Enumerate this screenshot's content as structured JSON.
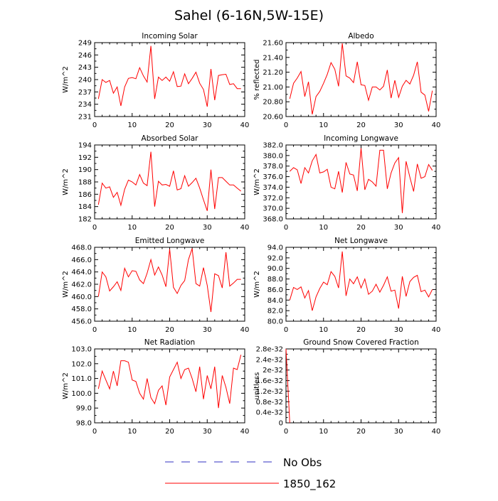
{
  "figure_title": "Sahel (6-16N,5W-15E)",
  "legend": [
    {
      "label": "No Obs",
      "color": "#3030c0",
      "style": "dashed"
    },
    {
      "label": "1850_162",
      "color": "#ff0000",
      "style": "solid"
    }
  ],
  "chart_data": [
    {
      "type": "line",
      "title": "Incoming Solar",
      "ylabel": "W/m^2",
      "xlim": [
        0,
        40
      ],
      "ylim": [
        231,
        249
      ],
      "xticks": [
        "0",
        "10",
        "20",
        "30",
        "40"
      ],
      "yticks": [
        "231",
        "234",
        "237",
        "240",
        "243",
        "246",
        "249"
      ],
      "series": [
        {
          "name": "1850_162",
          "color": "#ff0000",
          "x": [
            1,
            2,
            3,
            4,
            5,
            6,
            7,
            8,
            9,
            10,
            11,
            12,
            13,
            14,
            15,
            16,
            17,
            18,
            19,
            20,
            21,
            22,
            23,
            24,
            25,
            26,
            27,
            28,
            29,
            30,
            31,
            32,
            33,
            34,
            35,
            36,
            37,
            38,
            39
          ],
          "values": [
            235.3,
            240.0,
            239.3,
            239.8,
            236.7,
            238.2,
            233.6,
            238.2,
            240.3,
            240.5,
            240.2,
            242.9,
            240.9,
            239.4,
            248.2,
            235.3,
            240.6,
            239.8,
            240.6,
            239.6,
            241.9,
            238.3,
            238.4,
            241.4,
            239.0,
            240.3,
            241.8,
            239.1,
            237.6,
            233.4,
            242.6,
            235.0,
            241.0,
            241.2,
            241.3,
            238.8,
            239.0,
            237.8,
            237.8
          ]
        }
      ]
    },
    {
      "type": "line",
      "title": "Albedo",
      "ylabel": "% reflected",
      "xlim": [
        0,
        40
      ],
      "ylim": [
        20.6,
        21.6
      ],
      "xticks": [
        "0",
        "10",
        "20",
        "30",
        "40"
      ],
      "yticks": [
        "20.60",
        "20.80",
        "21.00",
        "21.20",
        "21.40",
        "21.60"
      ],
      "series": [
        {
          "name": "1850_162",
          "color": "#ff0000",
          "x": [
            1,
            2,
            3,
            4,
            5,
            6,
            7,
            8,
            9,
            10,
            11,
            12,
            13,
            14,
            15,
            16,
            17,
            18,
            19,
            20,
            21,
            22,
            23,
            24,
            25,
            26,
            27,
            28,
            29,
            30,
            31,
            32,
            33,
            34,
            35,
            36,
            37,
            38,
            39
          ],
          "values": [
            20.84,
            21.05,
            21.12,
            21.21,
            20.87,
            21.07,
            20.63,
            20.87,
            20.94,
            21.05,
            21.17,
            21.33,
            21.24,
            21.01,
            21.59,
            21.15,
            21.12,
            21.06,
            21.34,
            21.03,
            21.02,
            20.82,
            21.0,
            21.0,
            20.96,
            21.01,
            21.23,
            20.85,
            21.09,
            20.86,
            21.01,
            21.09,
            21.04,
            21.16,
            21.34,
            20.93,
            20.89,
            20.67,
            20.95
          ]
        }
      ]
    },
    {
      "type": "line",
      "title": "Absorbed Solar",
      "ylabel": "W/m^2",
      "xlim": [
        0,
        40
      ],
      "ylim": [
        182,
        194
      ],
      "xticks": [
        "0",
        "10",
        "20",
        "30",
        "40"
      ],
      "yticks": [
        "182",
        "184",
        "186",
        "188",
        "190",
        "192",
        "194"
      ],
      "series": [
        {
          "name": "1850_162",
          "color": "#ff0000",
          "x": [
            1,
            2,
            3,
            4,
            5,
            6,
            7,
            8,
            9,
            10,
            11,
            12,
            13,
            14,
            15,
            16,
            17,
            18,
            19,
            20,
            21,
            22,
            23,
            24,
            25,
            26,
            27,
            28,
            29,
            30,
            31,
            32,
            33,
            34,
            35,
            36,
            37,
            38,
            39
          ],
          "values": [
            184.3,
            187.8,
            187.0,
            187.2,
            185.5,
            186.3,
            184.2,
            186.8,
            188.3,
            188.0,
            187.5,
            189.2,
            187.8,
            187.4,
            192.9,
            184.0,
            188.1,
            187.5,
            187.6,
            187.3,
            189.8,
            186.7,
            186.9,
            189.0,
            187.3,
            187.9,
            188.6,
            187.0,
            185.1,
            183.3,
            190.0,
            183.6,
            188.7,
            188.7,
            188.1,
            187.5,
            187.5,
            187.0,
            186.5
          ]
        }
      ]
    },
    {
      "type": "line",
      "title": "Incoming Longwave",
      "ylabel": "W/m^2",
      "xlim": [
        0,
        40
      ],
      "ylim": [
        368.0,
        382.0
      ],
      "xticks": [
        "0",
        "10",
        "20",
        "30",
        "40"
      ],
      "yticks": [
        "368.0",
        "370.0",
        "372.0",
        "374.0",
        "376.0",
        "378.0",
        "380.0",
        "382.0"
      ],
      "series": [
        {
          "name": "1850_162",
          "color": "#ff0000",
          "x": [
            1,
            2,
            3,
            4,
            5,
            6,
            7,
            8,
            9,
            10,
            11,
            12,
            13,
            14,
            15,
            16,
            17,
            18,
            19,
            20,
            21,
            22,
            23,
            24,
            25,
            26,
            27,
            28,
            29,
            30,
            31,
            32,
            33,
            34,
            35,
            36,
            37,
            38,
            39
          ],
          "values": [
            377.0,
            377.7,
            377.3,
            374.7,
            377.7,
            376.7,
            379.0,
            380.2,
            376.7,
            376.9,
            377.4,
            374.0,
            373.7,
            377.0,
            373.0,
            378.7,
            376.5,
            376.3,
            373.3,
            381.4,
            373.5,
            375.5,
            375.0,
            374.2,
            381.0,
            381.0,
            373.7,
            376.7,
            378.6,
            379.6,
            369.1,
            378.9,
            375.9,
            373.2,
            378.4,
            375.7,
            376.0,
            378.3,
            377.2
          ]
        }
      ]
    },
    {
      "type": "line",
      "title": "Emitted Longwave",
      "ylabel": "W/m^2",
      "xlim": [
        0,
        40
      ],
      "ylim": [
        456.0,
        468.0
      ],
      "xticks": [
        "0",
        "10",
        "20",
        "30",
        "40"
      ],
      "yticks": [
        "456.0",
        "458.0",
        "460.0",
        "462.0",
        "464.0",
        "466.0",
        "468.0"
      ],
      "series": [
        {
          "name": "1850_162",
          "color": "#ff0000",
          "x": [
            1,
            2,
            3,
            4,
            5,
            6,
            7,
            8,
            9,
            10,
            11,
            12,
            13,
            14,
            15,
            16,
            17,
            18,
            19,
            20,
            21,
            22,
            23,
            24,
            25,
            26,
            27,
            28,
            29,
            30,
            31,
            32,
            33,
            34,
            35,
            36,
            37,
            38,
            39
          ],
          "values": [
            460.0,
            464.0,
            463.2,
            460.9,
            461.6,
            462.4,
            461.0,
            464.6,
            463.2,
            464.2,
            464.1,
            462.7,
            462.1,
            463.8,
            466.0,
            463.5,
            464.8,
            463.5,
            461.6,
            467.7,
            461.5,
            460.5,
            461.8,
            462.6,
            466.0,
            467.8,
            462.1,
            461.7,
            464.7,
            461.8,
            457.5,
            463.7,
            463.4,
            461.4,
            467.2,
            461.7,
            462.2,
            462.8,
            462.8
          ]
        }
      ]
    },
    {
      "type": "line",
      "title": "Net Longwave",
      "ylabel": "W/m^2",
      "xlim": [
        0,
        40
      ],
      "ylim": [
        80.0,
        94.0
      ],
      "xticks": [
        "0",
        "10",
        "20",
        "30",
        "40"
      ],
      "yticks": [
        "80.0",
        "82.0",
        "84.0",
        "86.0",
        "88.0",
        "90.0",
        "92.0",
        "94.0"
      ],
      "series": [
        {
          "name": "1850_162",
          "color": "#ff0000",
          "x": [
            1,
            2,
            3,
            4,
            5,
            6,
            7,
            8,
            9,
            10,
            11,
            12,
            13,
            14,
            15,
            16,
            17,
            18,
            19,
            20,
            21,
            22,
            23,
            24,
            25,
            26,
            27,
            28,
            29,
            30,
            31,
            32,
            33,
            34,
            35,
            36,
            37,
            38,
            39
          ],
          "values": [
            84.0,
            86.4,
            86.0,
            86.5,
            84.4,
            85.8,
            82.0,
            84.6,
            86.2,
            87.4,
            86.9,
            89.4,
            88.5,
            86.3,
            93.2,
            84.8,
            88.0,
            87.1,
            88.4,
            86.3,
            88.0,
            85.1,
            85.7,
            87.0,
            85.5,
            86.8,
            88.4,
            85.7,
            85.9,
            82.4,
            88.5,
            84.7,
            87.5,
            88.3,
            88.7,
            85.6,
            85.9,
            84.6,
            86.0
          ]
        }
      ]
    },
    {
      "type": "line",
      "title": "Net Radiation",
      "ylabel": "W/m^2",
      "xlim": [
        0,
        40
      ],
      "ylim": [
        98.0,
        103.0
      ],
      "xticks": [
        "0",
        "10",
        "20",
        "30",
        "40"
      ],
      "yticks": [
        "98.0",
        "99.0",
        "100.0",
        "101.0",
        "102.0",
        "103.0"
      ],
      "series": [
        {
          "name": "1850_162",
          "color": "#ff0000",
          "x": [
            1,
            2,
            3,
            4,
            5,
            6,
            7,
            8,
            9,
            10,
            11,
            12,
            13,
            14,
            15,
            16,
            17,
            18,
            19,
            20,
            21,
            22,
            23,
            24,
            25,
            26,
            27,
            28,
            29,
            30,
            31,
            32,
            33,
            34,
            35,
            36,
            37,
            38,
            39
          ],
          "values": [
            100.3,
            101.5,
            100.9,
            100.3,
            101.5,
            100.5,
            102.2,
            102.2,
            102.1,
            100.9,
            100.8,
            100.0,
            99.6,
            101.0,
            99.7,
            99.3,
            100.2,
            100.5,
            99.2,
            101.1,
            101.6,
            102.1,
            101.0,
            101.6,
            101.7,
            101.0,
            100.1,
            101.8,
            99.6,
            101.2,
            100.3,
            101.8,
            99.0,
            101.2,
            100.4,
            99.3,
            101.7,
            101.6,
            102.6
          ]
        }
      ]
    },
    {
      "type": "line",
      "title": "Ground Snow Covered Fraction",
      "ylabel": "unitless",
      "xlim": [
        0,
        40
      ],
      "ylim": [
        0,
        2.8e-32
      ],
      "xticks": [
        "0",
        "10",
        "20",
        "30",
        "40"
      ],
      "yticks": [
        "0",
        "0.4e-32",
        "0.8e-32",
        "1.2e-32",
        "1.6e-32",
        "2e-32",
        "2.4e-32",
        "2.8e-32"
      ],
      "series": [
        {
          "name": "1850_162",
          "color": "#ff0000",
          "x": [
            0,
            1
          ],
          "values": [
            2.8e-32,
            0
          ]
        }
      ]
    }
  ]
}
